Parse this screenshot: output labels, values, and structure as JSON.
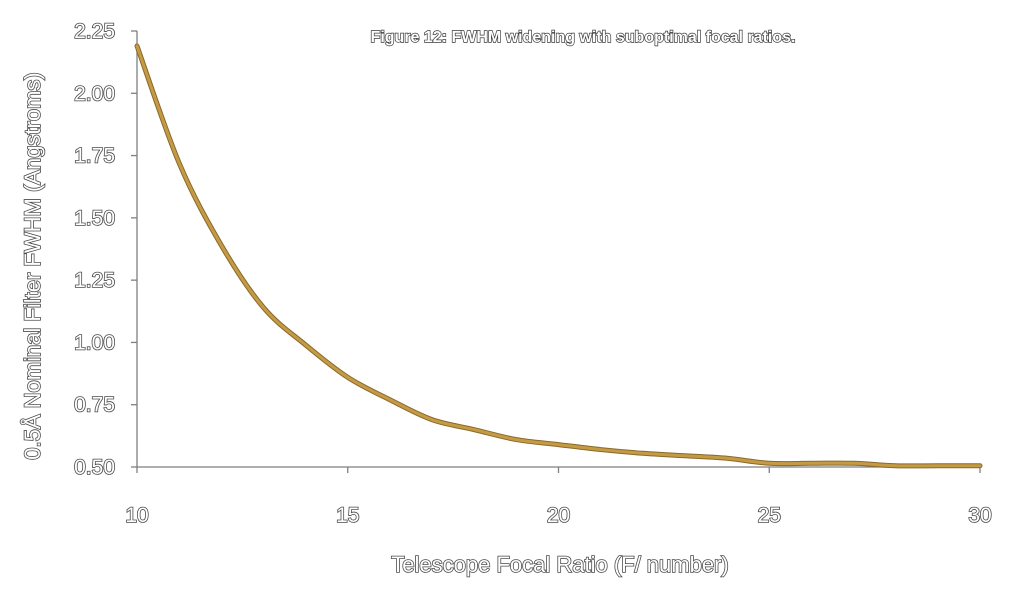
{
  "chart_data": {
    "type": "line",
    "title": "Figure 12: FWHM widening with suboptimal focal ratios.",
    "xlabel": "Telescope Focal Ratio (F/ number)",
    "ylabel": "0.5Å Nominal Filter FWHM (Angstroms)",
    "xlim": [
      10,
      30
    ],
    "ylim": [
      0.5,
      2.25
    ],
    "x_ticks": [
      "10",
      "15",
      "20",
      "25",
      "30"
    ],
    "x_tick_values": [
      10,
      15,
      20,
      25,
      30
    ],
    "y_ticks": [
      "0.50",
      "0.75",
      "1.00",
      "1.25",
      "1.50",
      "1.75",
      "2.00",
      "2.25"
    ],
    "y_tick_values": [
      0.5,
      0.75,
      1.0,
      1.25,
      1.5,
      1.75,
      2.0,
      2.25
    ],
    "grid": false,
    "legend": "none",
    "series": [
      {
        "color": "#c49a45",
        "x": [
          10,
          11,
          12,
          13,
          14,
          15,
          16,
          17,
          18,
          19,
          20,
          21,
          22,
          23,
          24,
          25,
          26,
          27,
          28,
          29,
          30
        ],
        "values": [
          2.19,
          1.72,
          1.39,
          1.14,
          0.99,
          0.86,
          0.77,
          0.69,
          0.65,
          0.61,
          0.59,
          0.57,
          0.555,
          0.545,
          0.535,
          0.515,
          0.515,
          0.515,
          0.505,
          0.505,
          0.505
        ]
      }
    ]
  }
}
